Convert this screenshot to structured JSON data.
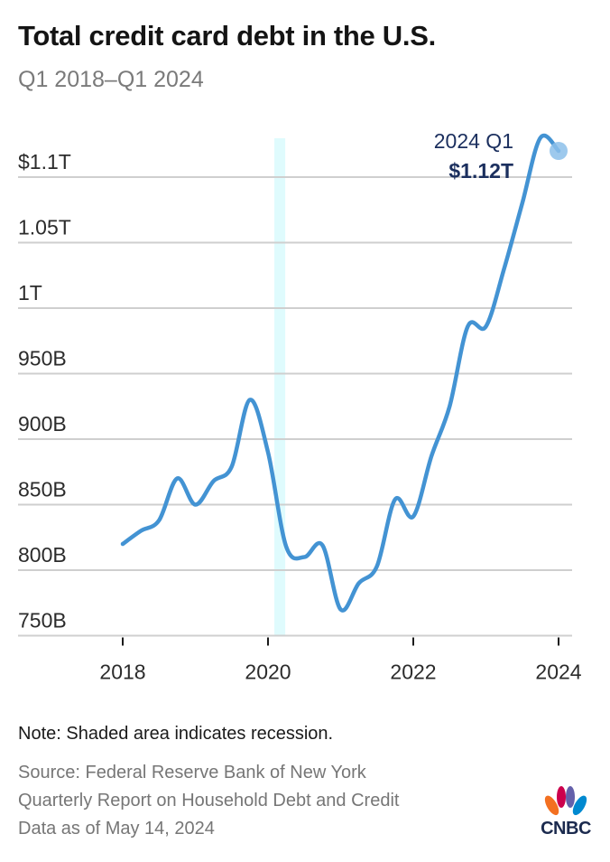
{
  "header": {
    "title": "Total credit card debt in the U.S.",
    "subtitle": "Q1 2018–Q1 2024"
  },
  "footer": {
    "note": "Note: Shaded area indicates recession.",
    "source_lines": [
      "Source: Federal Reserve Bank of New York",
      "Quarterly Report on Household Debt and Credit",
      "Data as of May 14, 2024"
    ],
    "logo_text": "CNBC"
  },
  "colors": {
    "line": "#4393d3",
    "annotation": "#1b2f5e",
    "recession": "#dffbfd",
    "grid": "#cfcfcf",
    "endpoint_dot": "#8cc0ea"
  },
  "chart_data": {
    "type": "line",
    "title": "Total credit card debt in the U.S.",
    "subtitle": "Q1 2018–Q1 2024",
    "xlabel": "",
    "ylabel": "",
    "unit": "billions USD",
    "x": [
      "2018 Q1",
      "2018 Q2",
      "2018 Q3",
      "2018 Q4",
      "2019 Q1",
      "2019 Q2",
      "2019 Q3",
      "2019 Q4",
      "2020 Q1",
      "2020 Q2",
      "2020 Q3",
      "2020 Q4",
      "2021 Q1",
      "2021 Q2",
      "2021 Q3",
      "2021 Q4",
      "2022 Q1",
      "2022 Q2",
      "2022 Q3",
      "2022 Q4",
      "2023 Q1",
      "2023 Q2",
      "2023 Q3",
      "2023 Q4",
      "2024 Q1"
    ],
    "series": [
      {
        "name": "Total credit card debt",
        "values": [
          820,
          830,
          838,
          870,
          850,
          868,
          879,
          930,
          890,
          818,
          810,
          819,
          770,
          790,
          803,
          854,
          841,
          887,
          925,
          986,
          986,
          1030,
          1080,
          1130,
          1120
        ]
      }
    ],
    "ylim": [
      750,
      1125
    ],
    "y_ticks": [
      {
        "value": 750,
        "label": "750B"
      },
      {
        "value": 800,
        "label": "800B"
      },
      {
        "value": 850,
        "label": "850B"
      },
      {
        "value": 900,
        "label": "900B"
      },
      {
        "value": 950,
        "label": "950B"
      },
      {
        "value": 1000,
        "label": "1T"
      },
      {
        "value": 1050,
        "label": "1.05T"
      },
      {
        "value": 1100,
        "label": "$1.1T"
      }
    ],
    "x_ticks": [
      {
        "index": 0,
        "label": "2018"
      },
      {
        "index": 8,
        "label": "2020"
      },
      {
        "index": 16,
        "label": "2022"
      },
      {
        "index": 24,
        "label": "2024"
      }
    ],
    "recession": {
      "start_index": 8.35,
      "end_index": 8.95,
      "label": "Shaded area indicates recession"
    },
    "annotation": {
      "index": 24,
      "period_label": "2024 Q1",
      "value_label": "$1.12T"
    },
    "grid": true,
    "legend": "none"
  }
}
